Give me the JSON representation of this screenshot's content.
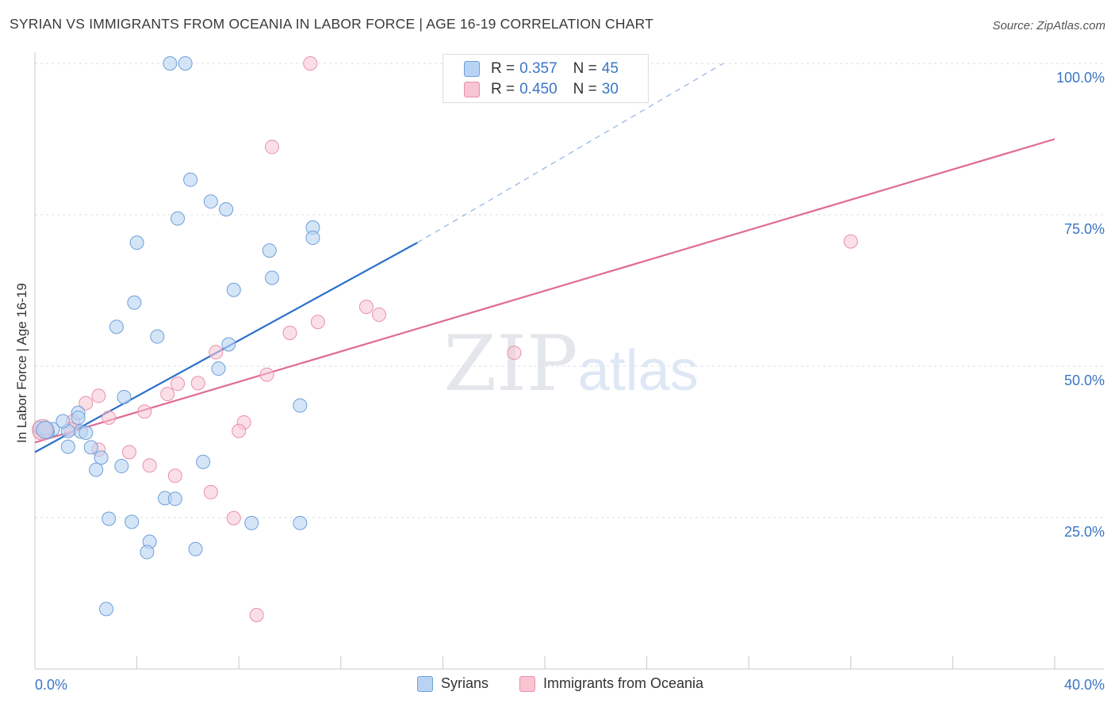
{
  "page": {
    "title": "SYRIAN VS IMMIGRANTS FROM OCEANIA IN LABOR FORCE | AGE 16-19 CORRELATION CHART",
    "source": "Source: ZipAtlas.com"
  },
  "legend": {
    "r_label": "R =",
    "n_label": "N =",
    "series": [
      {
        "r": "0.357",
        "n": "45"
      },
      {
        "r": "0.450",
        "n": "30"
      }
    ]
  },
  "chart_data": {
    "type": "scatter",
    "title": "SYRIAN VS IMMIGRANTS FROM OCEANIA IN LABOR FORCE | AGE 16-19 CORRELATION CHART",
    "xlabel": "",
    "ylabel": "In Labor Force | Age 16-19",
    "xlim": [
      0,
      40
    ],
    "ylim": [
      0,
      100
    ],
    "x_tick_labels": [
      "0.0%",
      "40.0%"
    ],
    "y_ticks": [
      25,
      50,
      75,
      100
    ],
    "y_tick_labels": [
      "25.0%",
      "50.0%",
      "75.0%",
      "100.0%"
    ],
    "grid": true,
    "legend_position": "top-center",
    "watermark": "ZIPatlas",
    "colors": {
      "syrians_fill": "#b9d3f3",
      "syrians_stroke": "#6f9fd8",
      "syrians_line": "#2a6fcc",
      "oceania_fill": "#f8c5d3",
      "oceania_stroke": "#e890aa",
      "oceania_line": "#e06a92",
      "axis_text": "#3a76c4"
    },
    "series": [
      {
        "name": "Syrians",
        "r": 0.357,
        "n": 45,
        "trend": {
          "x0": 0,
          "y0": 35.8,
          "x1": 15.0,
          "y1": 70.4,
          "dash_x1": 27.0,
          "dash_y1": 100
        },
        "points": [
          [
            5.3,
            100
          ],
          [
            5.9,
            100
          ],
          [
            6.1,
            80.8
          ],
          [
            6.9,
            77.2
          ],
          [
            7.5,
            75.9
          ],
          [
            5.6,
            74.4
          ],
          [
            4.0,
            70.4
          ],
          [
            10.9,
            72.9
          ],
          [
            10.9,
            71.2
          ],
          [
            9.2,
            69.1
          ],
          [
            7.8,
            62.6
          ],
          [
            9.3,
            64.6
          ],
          [
            3.9,
            60.5
          ],
          [
            3.2,
            56.5
          ],
          [
            4.8,
            54.9
          ],
          [
            7.6,
            53.6
          ],
          [
            7.2,
            49.6
          ],
          [
            3.5,
            44.9
          ],
          [
            10.4,
            43.5
          ],
          [
            1.7,
            42.3
          ],
          [
            1.7,
            41.5
          ],
          [
            0.2,
            39.8
          ],
          [
            0.7,
            39.6
          ],
          [
            1.3,
            39.3
          ],
          [
            1.8,
            39.2
          ],
          [
            0.5,
            39.1
          ],
          [
            0.4,
            39.7
          ],
          [
            1.1,
            40.9
          ],
          [
            2.0,
            39.0
          ],
          [
            1.3,
            36.7
          ],
          [
            2.2,
            36.6
          ],
          [
            2.6,
            34.9
          ],
          [
            3.4,
            33.5
          ],
          [
            2.4,
            32.9
          ],
          [
            6.6,
            34.2
          ],
          [
            5.1,
            28.2
          ],
          [
            5.5,
            28.1
          ],
          [
            2.9,
            24.8
          ],
          [
            3.8,
            24.3
          ],
          [
            8.5,
            24.1
          ],
          [
            10.4,
            24.1
          ],
          [
            4.5,
            21.0
          ],
          [
            4.4,
            19.3
          ],
          [
            6.3,
            19.8
          ],
          [
            2.8,
            9.9
          ]
        ]
      },
      {
        "name": "Immigrants from Oceania",
        "r": 0.45,
        "n": 30,
        "trend": {
          "x0": 0,
          "y0": 37.4,
          "x1": 40.0,
          "y1": 87.5
        },
        "points": [
          [
            10.8,
            100
          ],
          [
            9.3,
            86.2
          ],
          [
            32.0,
            70.6
          ],
          [
            13.0,
            59.8
          ],
          [
            13.5,
            58.5
          ],
          [
            11.1,
            57.3
          ],
          [
            10.0,
            55.5
          ],
          [
            18.8,
            52.2
          ],
          [
            7.1,
            52.3
          ],
          [
            9.1,
            48.6
          ],
          [
            5.6,
            47.1
          ],
          [
            6.4,
            47.2
          ],
          [
            2.5,
            45.1
          ],
          [
            5.2,
            45.4
          ],
          [
            2.0,
            43.9
          ],
          [
            4.3,
            42.5
          ],
          [
            2.9,
            41.5
          ],
          [
            1.5,
            40.9
          ],
          [
            0.3,
            39.6
          ],
          [
            0.2,
            39.0
          ],
          [
            1.4,
            39.6
          ],
          [
            8.2,
            40.7
          ],
          [
            8.0,
            39.3
          ],
          [
            2.5,
            36.2
          ],
          [
            3.7,
            35.8
          ],
          [
            4.5,
            33.6
          ],
          [
            5.5,
            31.9
          ],
          [
            6.9,
            29.2
          ],
          [
            7.8,
            24.9
          ],
          [
            8.7,
            8.9
          ]
        ]
      }
    ]
  },
  "bottom_legend": {
    "items": [
      "Syrians",
      "Immigrants from Oceania"
    ]
  }
}
